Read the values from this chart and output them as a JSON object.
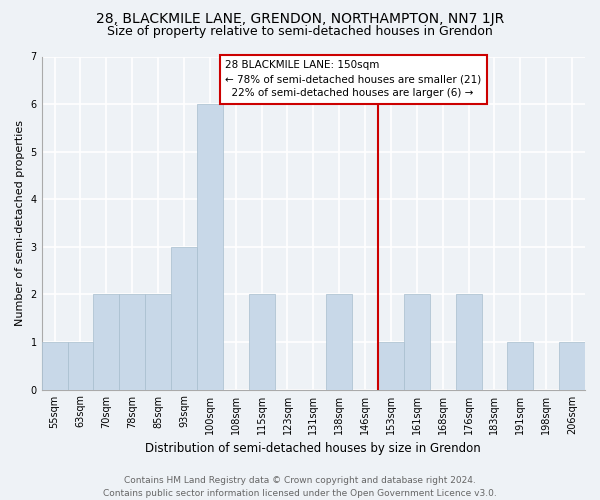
{
  "title": "28, BLACKMILE LANE, GRENDON, NORTHAMPTON, NN7 1JR",
  "subtitle": "Size of property relative to semi-detached houses in Grendon",
  "xlabel": "Distribution of semi-detached houses by size in Grendon",
  "ylabel": "Number of semi-detached properties",
  "categories": [
    "55sqm",
    "63sqm",
    "70sqm",
    "78sqm",
    "85sqm",
    "93sqm",
    "100sqm",
    "108sqm",
    "115sqm",
    "123sqm",
    "131sqm",
    "138sqm",
    "146sqm",
    "153sqm",
    "161sqm",
    "168sqm",
    "176sqm",
    "183sqm",
    "191sqm",
    "198sqm",
    "206sqm"
  ],
  "values": [
    1,
    1,
    2,
    2,
    2,
    3,
    6,
    0,
    2,
    0,
    0,
    2,
    0,
    1,
    2,
    0,
    2,
    0,
    1,
    0,
    1
  ],
  "bar_color": "#c8d8e8",
  "bar_edgecolor": "#a8bece",
  "annotation_box_color": "#ffffff",
  "annotation_box_edgecolor": "#cc0000",
  "vline_color": "#cc0000",
  "pct_smaller": 78,
  "count_smaller": 21,
  "pct_larger": 22,
  "count_larger": 6,
  "prop_label": "28 BLACKMILE LANE: 150sqm",
  "ylim": [
    0,
    7
  ],
  "yticks": [
    0,
    1,
    2,
    3,
    4,
    5,
    6,
    7
  ],
  "footnote": "Contains HM Land Registry data © Crown copyright and database right 2024.\nContains public sector information licensed under the Open Government Licence v3.0.",
  "background_color": "#eef2f6",
  "grid_color": "#ffffff",
  "title_fontsize": 10,
  "subtitle_fontsize": 9,
  "xlabel_fontsize": 8.5,
  "ylabel_fontsize": 8,
  "tick_fontsize": 7,
  "annotation_fontsize": 7.5,
  "footnote_fontsize": 6.5
}
